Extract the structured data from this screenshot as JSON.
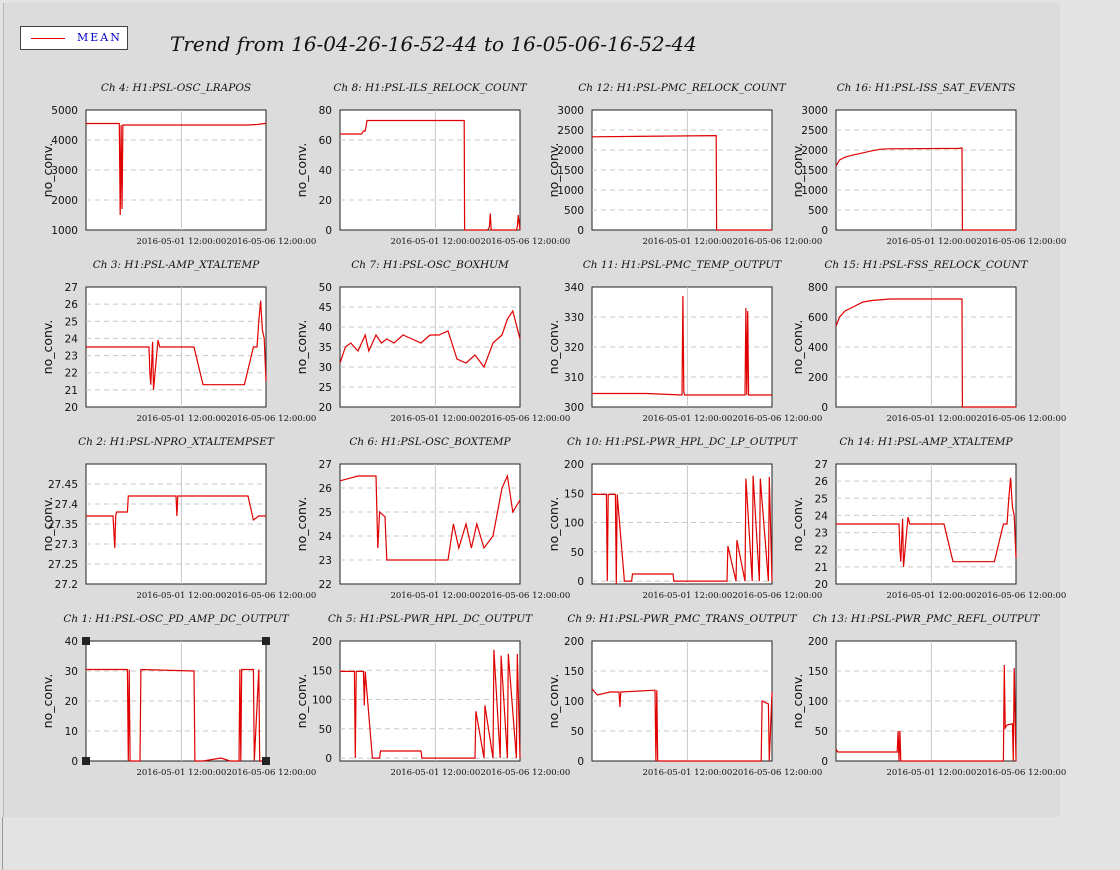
{
  "header": {
    "title": "Trend from 16-04-26-16-52-44 to 16-05-06-16-52-44"
  },
  "legend": {
    "label": "MEAN",
    "color": "#e00000"
  },
  "chart_data": [
    {
      "type": "line",
      "title": "Ch 4: H1:PSL-OSC_LRAPOS",
      "ylabel": "no_conv.",
      "ylim": [
        1000,
        5000
      ],
      "yticks": [
        1000,
        2000,
        3000,
        4000,
        5000
      ],
      "ytick_labels": [
        "1000",
        "2000",
        "3000",
        "4000",
        "5000"
      ],
      "xticks": [
        5.3,
        10.3
      ],
      "xtick_labels": [
        "2016-05-01 12:00:00",
        "2016-05-06 12:00:00"
      ],
      "xlim": [
        0,
        10
      ],
      "x": [
        0,
        1.8,
        1.85,
        1.9,
        1.95,
        2.0,
        2.05,
        9.0,
        9.6,
        9.9,
        10
      ],
      "y": [
        4550,
        4550,
        4550,
        1500,
        4500,
        1700,
        4500,
        4500,
        4520,
        4550,
        4550
      ]
    },
    {
      "type": "line",
      "title": "Ch 8: H1:PSL-ILS_RELOCK_COUNT",
      "ylabel": "no_conv.",
      "ylim": [
        0,
        80
      ],
      "yticks": [
        0,
        20,
        40,
        60,
        80
      ],
      "ytick_labels": [
        "0",
        "20",
        "40",
        "60",
        "80"
      ],
      "xticks": [
        5.3,
        10.3
      ],
      "xtick_labels": [
        "2016-05-01 12:00:00",
        "2016-05-06 12:00:00"
      ],
      "xlim": [
        0,
        10
      ],
      "x": [
        0,
        1.2,
        1.3,
        1.4,
        1.5,
        6.9,
        6.92,
        8.2,
        8.3,
        8.35,
        8.4,
        9.8,
        9.85,
        9.9,
        10
      ],
      "y": [
        64,
        64,
        66,
        66,
        73,
        73,
        0,
        0,
        2,
        11,
        0,
        0,
        2,
        10,
        0
      ]
    },
    {
      "type": "line",
      "title": "Ch 12: H1:PSL-PMC_RELOCK_COUNT",
      "ylabel": "no_conv.",
      "ylim": [
        0,
        3000
      ],
      "yticks": [
        0,
        500,
        1000,
        1500,
        2000,
        2500,
        3000
      ],
      "ytick_labels": [
        "0",
        "500",
        "1000",
        "1500",
        "2000",
        "2500",
        "3000"
      ],
      "xticks": [
        5.3,
        10.3
      ],
      "xtick_labels": [
        "2016-05-01 12:00:00",
        "2016-05-06 12:00:00"
      ],
      "xlim": [
        0,
        10
      ],
      "x": [
        0,
        6.9,
        6.92,
        10
      ],
      "y": [
        2330,
        2360,
        0,
        0
      ]
    },
    {
      "type": "line",
      "title": "Ch 16: H1:PSL-ISS_SAT_EVENTS",
      "ylabel": "no_conv.",
      "ylim": [
        0,
        3000
      ],
      "yticks": [
        0,
        500,
        1000,
        1500,
        2000,
        2500,
        3000
      ],
      "ytick_labels": [
        "0",
        "500",
        "1000",
        "1500",
        "2000",
        "2500",
        "3000"
      ],
      "xticks": [
        5.3,
        10.3
      ],
      "xtick_labels": [
        "2016-05-01 12:00:00",
        "2016-05-06 12:00:00"
      ],
      "xlim": [
        0,
        10
      ],
      "x": [
        0,
        0.2,
        0.5,
        1.0,
        1.5,
        2.0,
        2.5,
        3.0,
        6.8,
        7.0,
        7.02,
        10
      ],
      "y": [
        1600,
        1750,
        1820,
        1880,
        1930,
        1980,
        2020,
        2030,
        2040,
        2050,
        0,
        0
      ]
    },
    {
      "type": "line",
      "title": "Ch 3: H1:PSL-AMP_XTALTEMP",
      "ylabel": "no_conv.",
      "ylim": [
        20,
        27
      ],
      "yticks": [
        20,
        21,
        22,
        23,
        24,
        25,
        26,
        27
      ],
      "ytick_labels": [
        "20",
        "21",
        "22",
        "23",
        "24",
        "25",
        "26",
        "27"
      ],
      "xticks": [
        5.3,
        10.3
      ],
      "xtick_labels": [
        "2016-05-01 12:00:00",
        "2016-05-06 12:00:00"
      ],
      "xlim": [
        0,
        10
      ],
      "x": [
        0,
        3.5,
        3.55,
        3.6,
        3.7,
        3.75,
        4.0,
        4.1,
        4.2,
        4.3,
        6.0,
        6.5,
        8.5,
        8.8,
        9.3,
        9.4,
        9.5,
        9.6,
        9.7,
        9.8,
        9.9,
        10
      ],
      "y": [
        23.5,
        23.5,
        22.0,
        21.3,
        23.8,
        21.0,
        23.9,
        23.5,
        23.5,
        23.5,
        23.5,
        21.3,
        21.3,
        21.3,
        23.5,
        23.5,
        23.5,
        25.0,
        26.2,
        24.5,
        24.0,
        21.5
      ]
    },
    {
      "type": "line",
      "title": "Ch 7: H1:PSL-OSC_BOXHUM",
      "ylabel": "no_conv.",
      "ylim": [
        20,
        50
      ],
      "yticks": [
        20,
        25,
        30,
        35,
        40,
        45,
        50
      ],
      "ytick_labels": [
        "20",
        "25",
        "30",
        "35",
        "40",
        "45",
        "50"
      ],
      "xticks": [
        5.3,
        10.3
      ],
      "xtick_labels": [
        "2016-05-01 12:00:00",
        "2016-05-06 12:00:00"
      ],
      "xlim": [
        0,
        10
      ],
      "x": [
        0,
        0.3,
        0.6,
        1.0,
        1.4,
        1.6,
        2.0,
        2.3,
        2.6,
        3.0,
        3.5,
        4.0,
        4.5,
        5.0,
        5.5,
        6.0,
        6.5,
        7.0,
        7.5,
        8.0,
        8.5,
        9.0,
        9.3,
        9.6,
        10
      ],
      "y": [
        31,
        35,
        36,
        34,
        38,
        34,
        38,
        36,
        37,
        36,
        38,
        37,
        36,
        38,
        38,
        39,
        32,
        31,
        33,
        30,
        36,
        38,
        42,
        44,
        37
      ]
    },
    {
      "type": "line",
      "title": "Ch 11: H1:PSL-PMC_TEMP_OUTPUT",
      "ylabel": "no_conv.",
      "ylim": [
        300,
        340
      ],
      "yticks": [
        300,
        310,
        320,
        330,
        340
      ],
      "ytick_labels": [
        "300",
        "310",
        "320",
        "330",
        "340"
      ],
      "xticks": [
        5.3,
        10.3
      ],
      "xtick_labels": [
        "2016-05-01 12:00:00",
        "2016-05-06 12:00:00"
      ],
      "xlim": [
        0,
        10
      ],
      "x": [
        0,
        3.0,
        5.0,
        5.05,
        5.1,
        5.15,
        6.0,
        8.5,
        8.55,
        8.6,
        8.65,
        8.7,
        8.75,
        9.5,
        10
      ],
      "y": [
        304.5,
        304.5,
        304,
        337,
        305,
        304,
        304,
        304,
        333,
        304,
        332,
        304,
        304,
        304,
        304
      ]
    },
    {
      "type": "line",
      "title": "Ch 15: H1:PSL-FSS_RELOCK_COUNT",
      "ylabel": "no_conv.",
      "ylim": [
        0,
        800
      ],
      "yticks": [
        0,
        200,
        400,
        600,
        800
      ],
      "ytick_labels": [
        "0",
        "200",
        "400",
        "600",
        "800"
      ],
      "xticks": [
        5.3,
        10.3
      ],
      "xtick_labels": [
        "2016-05-01 12:00:00",
        "2016-05-06 12:00:00"
      ],
      "xlim": [
        0,
        10
      ],
      "x": [
        0,
        0.2,
        0.5,
        1.0,
        1.5,
        2.0,
        3.0,
        7.0,
        7.02,
        10
      ],
      "y": [
        540,
        600,
        640,
        670,
        700,
        710,
        720,
        720,
        0,
        0
      ]
    },
    {
      "type": "line",
      "title": "Ch 2: H1:PSL-NPRO_XTALTEMPSET",
      "ylabel": "no_conv.",
      "ylim": [
        27.2,
        27.5
      ],
      "yticks": [
        27.2,
        27.25,
        27.3,
        27.35,
        27.4,
        27.45
      ],
      "ytick_labels": [
        "27.2",
        "27.25",
        "27.3",
        "27.35",
        "27.4",
        "27.45"
      ],
      "xticks": [
        5.3,
        10.3
      ],
      "xtick_labels": [
        "2016-05-01 12:00:00",
        "2016-05-06 12:00:00"
      ],
      "xlim": [
        0,
        10
      ],
      "x": [
        0,
        1.5,
        1.6,
        1.65,
        1.7,
        2.3,
        2.35,
        2.4,
        5.0,
        5.05,
        5.1,
        9.0,
        9.3,
        9.6,
        10
      ],
      "y": [
        27.37,
        27.37,
        27.29,
        27.37,
        27.38,
        27.38,
        27.42,
        27.42,
        27.42,
        27.37,
        27.42,
        27.42,
        27.36,
        27.37,
        27.37
      ]
    },
    {
      "type": "line",
      "title": "Ch 6: H1:PSL-OSC_BOXTEMP",
      "ylabel": "no_conv.",
      "ylim": [
        22,
        27
      ],
      "yticks": [
        22,
        23,
        24,
        25,
        26,
        27
      ],
      "ytick_labels": [
        "22",
        "23",
        "24",
        "25",
        "26",
        "27"
      ],
      "xticks": [
        5.3,
        10.3
      ],
      "xtick_labels": [
        "2016-05-01 12:00:00",
        "2016-05-06 12:00:00"
      ],
      "xlim": [
        0,
        10
      ],
      "x": [
        0,
        0.5,
        1.0,
        1.5,
        2.0,
        2.1,
        2.2,
        2.5,
        2.6,
        3.0,
        4.0,
        5.0,
        6.0,
        6.3,
        6.6,
        7.0,
        7.3,
        7.6,
        8.0,
        8.5,
        9.0,
        9.3,
        9.6,
        10
      ],
      "y": [
        26.3,
        26.4,
        26.5,
        26.5,
        26.5,
        23.5,
        25.0,
        24.8,
        23.0,
        23.0,
        23.0,
        23.0,
        23.0,
        24.5,
        23.5,
        24.5,
        23.5,
        24.5,
        23.5,
        24.0,
        26.0,
        26.5,
        25.0,
        25.5
      ]
    },
    {
      "type": "line",
      "title": "Ch 10: H1:PSL-PWR_HPL_DC_LP_OUTPUT",
      "ylabel": "no_conv.",
      "ylim": [
        -5,
        200
      ],
      "yticks": [
        0,
        50,
        100,
        150,
        200
      ],
      "ytick_labels": [
        "0",
        "50",
        "100",
        "150",
        "200"
      ],
      "xticks": [
        5.3,
        10.3
      ],
      "xtick_labels": [
        "2016-05-01 12:00:00",
        "2016-05-06 12:00:00"
      ],
      "xlim": [
        0,
        10
      ],
      "x": [
        0,
        0.8,
        0.85,
        0.9,
        1.3,
        1.35,
        1.4,
        1.8,
        1.85,
        2.2,
        2.25,
        4.5,
        4.55,
        6.0,
        7.5,
        7.55,
        8.0,
        8.05,
        8.5,
        8.55,
        8.9,
        8.95,
        9.3,
        9.35,
        9.8,
        9.85,
        10
      ],
      "y": [
        148,
        148,
        0,
        148,
        148,
        -5,
        148,
        0,
        0,
        0,
        12,
        12,
        0,
        0,
        0,
        60,
        0,
        70,
        0,
        175,
        0,
        180,
        0,
        175,
        0,
        178,
        0
      ]
    },
    {
      "type": "line",
      "title": "Ch 14: H1:PSL-AMP_XTALTEMP",
      "ylabel": "no_conv.",
      "ylim": [
        20,
        27
      ],
      "yticks": [
        20,
        21,
        22,
        23,
        24,
        25,
        26,
        27
      ],
      "ytick_labels": [
        "20",
        "21",
        "22",
        "23",
        "24",
        "25",
        "26",
        "27"
      ],
      "xticks": [
        5.3,
        10.3
      ],
      "xtick_labels": [
        "2016-05-01 12:00:00",
        "2016-05-06 12:00:00"
      ],
      "xlim": [
        0,
        10
      ],
      "x": [
        0,
        3.5,
        3.55,
        3.6,
        3.7,
        3.75,
        4.0,
        4.1,
        4.2,
        4.3,
        6.0,
        6.5,
        8.5,
        8.8,
        9.3,
        9.4,
        9.5,
        9.6,
        9.7,
        9.8,
        9.9,
        10
      ],
      "y": [
        23.5,
        23.5,
        22.0,
        21.3,
        23.8,
        21.0,
        23.9,
        23.5,
        23.5,
        23.5,
        23.5,
        21.3,
        21.3,
        21.3,
        23.5,
        23.5,
        23.5,
        25.0,
        26.2,
        24.5,
        24.0,
        21.5
      ]
    },
    {
      "type": "line",
      "title": "Ch 1: H1:PSL-OSC_PD_AMP_DC_OUTPUT",
      "ylabel": "no_conv.",
      "ylim": [
        0,
        40
      ],
      "yticks": [
        0,
        10,
        20,
        30,
        40
      ],
      "ytick_labels": [
        "0",
        "10",
        "20",
        "30",
        "40"
      ],
      "xticks": [
        5.3,
        10.3
      ],
      "xtick_labels": [
        "2016-05-01 12:00:00",
        "2016-05-06 12:00:00"
      ],
      "xlim": [
        0,
        10
      ],
      "x": [
        0,
        2.3,
        2.35,
        2.4,
        2.45,
        2.6,
        3.0,
        3.05,
        6.0,
        6.05,
        6.5,
        7.5,
        8.0,
        8.5,
        8.55,
        8.6,
        8.65,
        9.0,
        9.3,
        9.35,
        9.6,
        9.65,
        10
      ],
      "y": [
        30.5,
        30.5,
        0,
        30.5,
        0,
        0,
        0,
        30.5,
        30,
        0,
        0,
        1,
        0,
        0,
        30.5,
        0,
        30.5,
        30.5,
        30.5,
        0,
        30.5,
        0,
        0
      ]
    },
    {
      "type": "line",
      "title": "Ch 5: H1:PSL-PWR_HPL_DC_OUTPUT",
      "ylabel": "no_conv.",
      "ylim": [
        -5,
        200
      ],
      "yticks": [
        0,
        50,
        100,
        150,
        200
      ],
      "ytick_labels": [
        "0",
        "50",
        "100",
        "150",
        "200"
      ],
      "xticks": [
        5.3,
        10.3
      ],
      "xtick_labels": [
        "2016-05-01 12:00:00",
        "2016-05-06 12:00:00"
      ],
      "xlim": [
        0,
        10
      ],
      "x": [
        0,
        0.8,
        0.85,
        0.9,
        1.3,
        1.35,
        1.4,
        1.8,
        1.85,
        2.2,
        2.25,
        4.5,
        4.55,
        6.0,
        7.5,
        7.55,
        8.0,
        8.05,
        8.5,
        8.55,
        8.9,
        8.95,
        9.3,
        9.35,
        9.8,
        9.85,
        10
      ],
      "y": [
        148,
        148,
        0,
        148,
        148,
        90,
        148,
        0,
        0,
        0,
        12,
        12,
        0,
        0,
        0,
        80,
        0,
        90,
        0,
        185,
        0,
        175,
        0,
        178,
        0,
        178,
        0
      ]
    },
    {
      "type": "line",
      "title": "Ch 9: H1:PSL-PWR_PMC_TRANS_OUTPUT",
      "ylabel": "no_conv.",
      "ylim": [
        0,
        200
      ],
      "yticks": [
        0,
        50,
        100,
        150,
        200
      ],
      "ytick_labels": [
        "0",
        "50",
        "100",
        "150",
        "200"
      ],
      "xticks": [
        5.3,
        10.3
      ],
      "xtick_labels": [
        "2016-05-01 12:00:00",
        "2016-05-06 12:00:00"
      ],
      "xlim": [
        0,
        10
      ],
      "x": [
        0,
        0.3,
        1.0,
        1.5,
        1.55,
        1.6,
        3.5,
        3.55,
        3.6,
        3.65,
        9.4,
        9.45,
        9.6,
        9.8,
        9.85,
        10
      ],
      "y": [
        120,
        110,
        115,
        115,
        90,
        115,
        118,
        0,
        118,
        0,
        0,
        100,
        98,
        95,
        0,
        115
      ]
    },
    {
      "type": "line",
      "title": "Ch 13: H1:PSL-PWR_PMC_REFL_OUTPUT",
      "ylabel": "no_conv.",
      "ylim": [
        0,
        200
      ],
      "yticks": [
        0,
        50,
        100,
        150,
        200
      ],
      "ytick_labels": [
        "0",
        "50",
        "100",
        "150",
        "200"
      ],
      "xticks": [
        5.3,
        10.3
      ],
      "xtick_labels": [
        "2016-05-01 12:00:00",
        "2016-05-06 12:00:00"
      ],
      "xlim": [
        0,
        10
      ],
      "x": [
        0,
        0.1,
        0.5,
        3.4,
        3.45,
        3.5,
        3.55,
        3.6,
        3.65,
        9.3,
        9.35,
        9.4,
        9.5,
        9.8,
        9.85,
        9.9,
        10
      ],
      "y": [
        20,
        15,
        15,
        15,
        50,
        0,
        50,
        0,
        0,
        0,
        160,
        55,
        60,
        62,
        0,
        155,
        0
      ]
    }
  ]
}
